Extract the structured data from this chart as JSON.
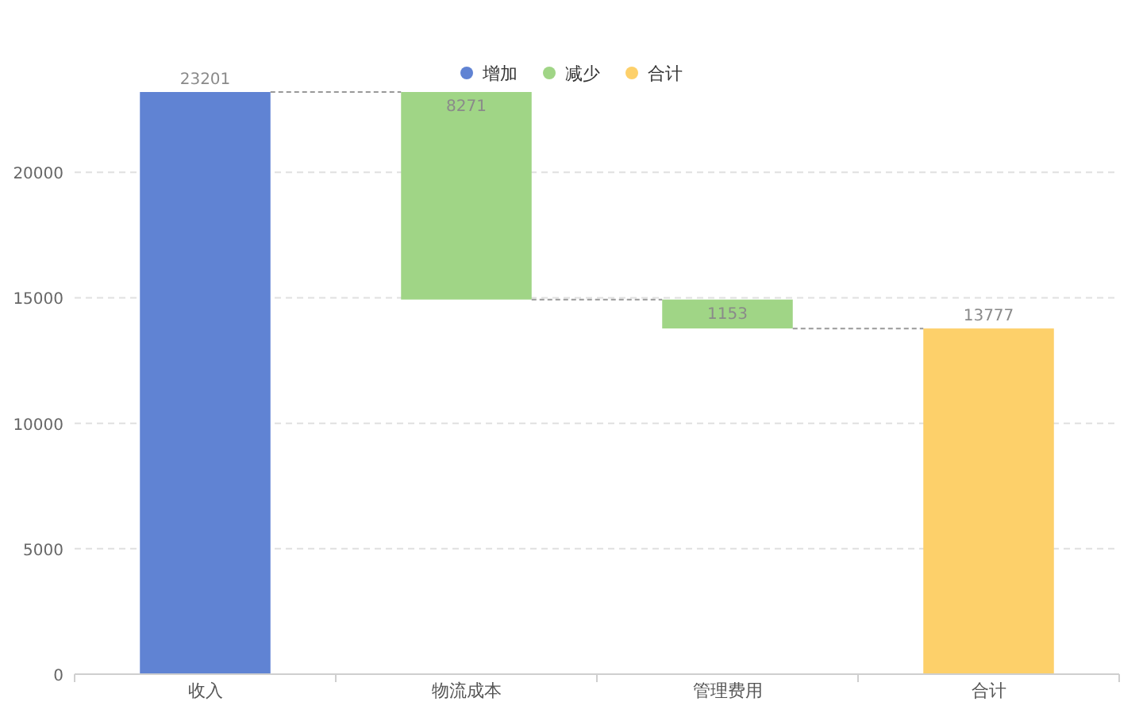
{
  "chart_data": {
    "type": "bar",
    "categories": [
      "收入",
      "物流成本",
      "管理费用",
      "合计"
    ],
    "series": [
      {
        "name": "增加",
        "color": "#6083d3",
        "values": [
          23201,
          null,
          null,
          null
        ]
      },
      {
        "name": "减少",
        "color": "#a0d586",
        "values": [
          null,
          8271,
          1153,
          null
        ],
        "base": [
          null,
          14930,
          13777,
          null
        ]
      },
      {
        "name": "合计",
        "color": "#fdd06a",
        "values": [
          null,
          null,
          null,
          13777
        ]
      }
    ],
    "ylim": [
      0,
      23201
    ],
    "yticks": [
      0,
      5000,
      10000,
      15000,
      20000
    ],
    "grid": "y",
    "legend": "top",
    "data_labels": true
  }
}
